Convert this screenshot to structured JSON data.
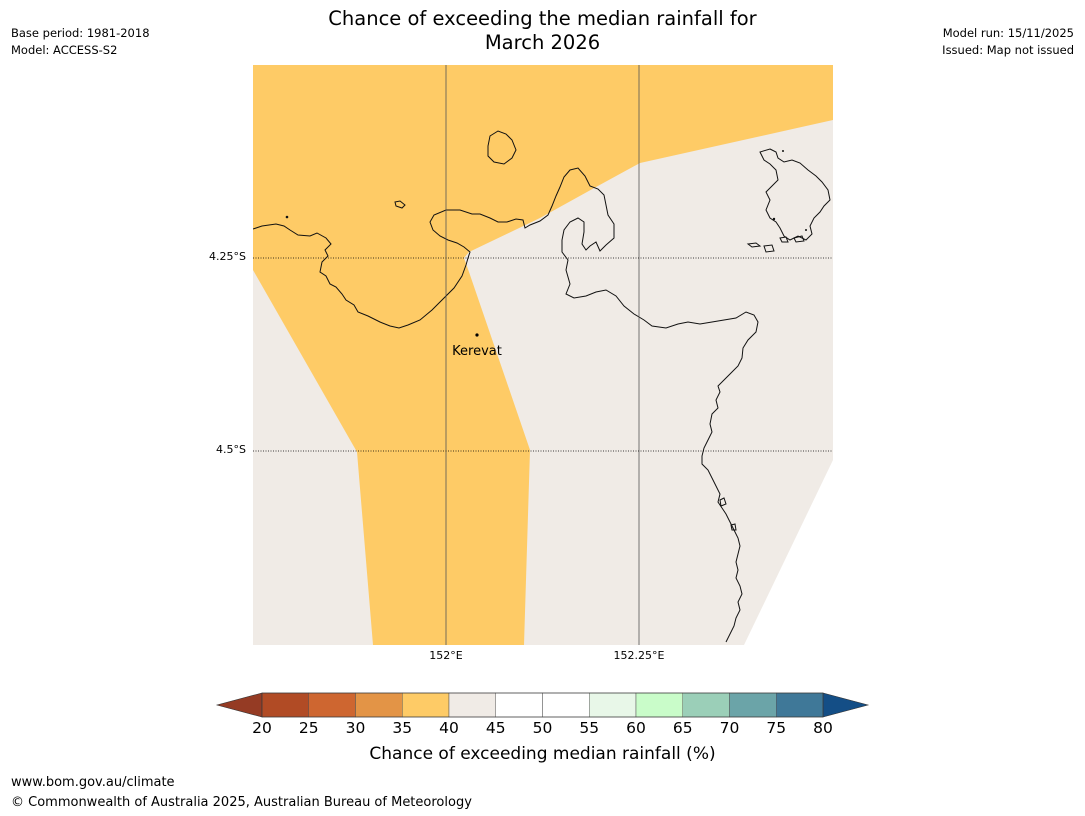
{
  "header": {
    "title_line1": "Chance of exceeding the median rainfall for",
    "title_line2": "March 2026",
    "base_period": "Base period: 1981-2018",
    "model": "Model: ACCESS-S2",
    "model_run": "Model run: 15/11/2025",
    "issued": "Issued: Map not issued"
  },
  "map": {
    "latitudes": [
      "4.25°S",
      "4.5°S"
    ],
    "longitudes": [
      "152°E",
      "152.25°E"
    ],
    "place": "Kerevat",
    "colors": {
      "band_35_40": "#FECB66",
      "band_40_45": "#F0EBE6",
      "coast": "#111111",
      "gridline": "#555555"
    }
  },
  "colorbar": {
    "title": "Chance of exceeding median rainfall (%)",
    "ticks": [
      "20",
      "25",
      "30",
      "35",
      "40",
      "45",
      "50",
      "55",
      "60",
      "65",
      "70",
      "75",
      "80"
    ],
    "colors": [
      "#B14B25",
      "#CE6630",
      "#E39446",
      "#FECB66",
      "#F0EBE6",
      "#FFFFFF",
      "#FFFFFF",
      "#E8F7E8",
      "#C9FCC9",
      "#9BCFB8",
      "#6BA4A8",
      "#3F7898"
    ],
    "extend_low_color": "#953B24",
    "extend_high_color": "#144E86"
  },
  "footer": {
    "url": "www.bom.gov.au/climate",
    "copyright": "© Commonwealth of Australia 2025, Australian Bureau of Meteorology"
  }
}
